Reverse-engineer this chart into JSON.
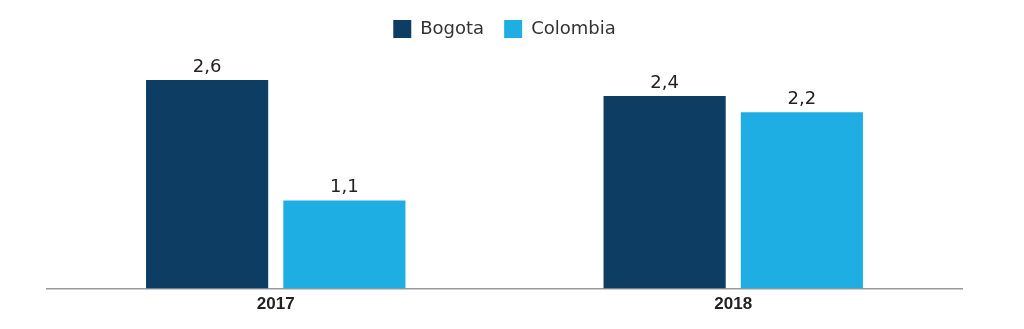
{
  "chart_data": {
    "type": "bar",
    "categories": [
      "2017",
      "2018"
    ],
    "series": [
      {
        "name": "Bogota",
        "color": "#0d3d63",
        "values": [
          2.6,
          2.4
        ],
        "value_labels": [
          "2,6",
          "2,4"
        ]
      },
      {
        "name": "Colombia",
        "color": "#1eaee4",
        "values": [
          1.1,
          2.2
        ],
        "value_labels": [
          "1,1",
          "2,2"
        ]
      }
    ],
    "legend": "top",
    "grid": false
  }
}
